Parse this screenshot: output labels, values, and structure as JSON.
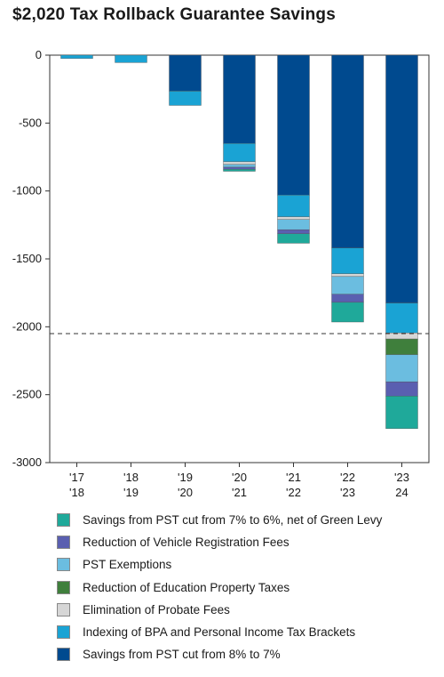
{
  "chart_data": {
    "type": "bar",
    "stacked": true,
    "title": "$2,020 Tax Rollback Guarantee Savings",
    "categories": [
      [
        "'17",
        "'18"
      ],
      [
        "'18",
        "'19"
      ],
      [
        "'19",
        "'20"
      ],
      [
        "'20",
        "'21"
      ],
      [
        "'21",
        "'22"
      ],
      [
        "'22",
        "'23"
      ],
      [
        "'23",
        "24"
      ]
    ],
    "ylim": [
      -3000,
      0
    ],
    "yticks": [
      0,
      -500,
      -1000,
      -1500,
      -2000,
      -2500,
      -3000
    ],
    "reference_line": -2050,
    "legend_position": "bottom",
    "series": [
      {
        "name": "Savings from PST cut from 8% to 7%",
        "color": "#004a8f",
        "values": [
          0,
          0,
          -265,
          -650,
          -1030,
          -1420,
          -1825
        ]
      },
      {
        "name": "Indexing of BPA and Personal Income Tax Brackets",
        "color": "#1aa3d4",
        "values": [
          -25,
          -55,
          -105,
          -135,
          -160,
          -190,
          -220
        ]
      },
      {
        "name": "Elimination of Probate Fees",
        "color": "#d6d6d6",
        "values": [
          0,
          0,
          0,
          -20,
          -20,
          -20,
          -45
        ]
      },
      {
        "name": "Reduction of Education Property Taxes",
        "color": "#3f7f3c",
        "values": [
          0,
          0,
          0,
          0,
          0,
          0,
          -115
        ]
      },
      {
        "name": "PST Exemptions",
        "color": "#6bbde0",
        "values": [
          0,
          0,
          0,
          -20,
          -75,
          -130,
          -200
        ]
      },
      {
        "name": "Reduction of Vehicle Registration Fees",
        "color": "#5a5fb0",
        "values": [
          0,
          0,
          0,
          -15,
          -30,
          -60,
          -105
        ]
      },
      {
        "name": "Savings from PST cut from 7% to 6%, net of Green Levy",
        "color": "#1fa99a",
        "values": [
          0,
          0,
          0,
          -15,
          -70,
          -145,
          -240
        ]
      }
    ]
  }
}
